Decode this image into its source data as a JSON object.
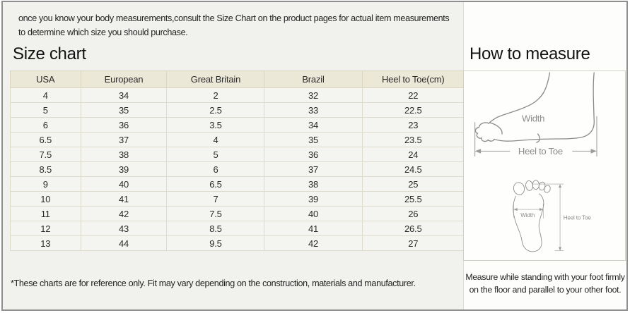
{
  "intro_text": "once you know your body measurements,consult the Size Chart on the product pages for actual item measurements to determine which size you should purchase.",
  "size_chart": {
    "title": "Size chart",
    "columns": [
      "USA",
      "European",
      "Great Britain",
      "Brazil",
      "Heel to Toe(cm)"
    ],
    "rows": [
      [
        "4",
        "34",
        "2",
        "32",
        "22"
      ],
      [
        "5",
        "35",
        "2.5",
        "33",
        "22.5"
      ],
      [
        "6",
        "36",
        "3.5",
        "34",
        "23"
      ],
      [
        "6.5",
        "37",
        "4",
        "35",
        "23.5"
      ],
      [
        "7.5",
        "38",
        "5",
        "36",
        "24"
      ],
      [
        "8.5",
        "39",
        "6",
        "37",
        "24.5"
      ],
      [
        "9",
        "40",
        "6.5",
        "38",
        "25"
      ],
      [
        "10",
        "41",
        "7",
        "39",
        "25.5"
      ],
      [
        "11",
        "42",
        "7.5",
        "40",
        "26"
      ],
      [
        "12",
        "43",
        "8.5",
        "41",
        "26.5"
      ],
      [
        "13",
        "44",
        "9.5",
        "42",
        "27"
      ]
    ],
    "footnote": "*These charts are for reference only. Fit may vary depending on the construction, materials and manufacturer."
  },
  "how_to_measure": {
    "title": "How to measure",
    "labels": {
      "width_side": "Width",
      "heel_to_toe_side": "Heel to Toe",
      "width_sole": "Width",
      "heel_to_toe_sole": "Heel to Toe"
    },
    "instruction": "Measure while standing with your foot firmly on the floor and parallel to your other foot."
  },
  "chart_data": {
    "type": "table",
    "title": "Size chart",
    "columns": [
      "USA",
      "European",
      "Great Britain",
      "Brazil",
      "Heel to Toe(cm)"
    ],
    "rows": [
      [
        4,
        34,
        2,
        32,
        22
      ],
      [
        5,
        35,
        2.5,
        33,
        22.5
      ],
      [
        6,
        36,
        3.5,
        34,
        23
      ],
      [
        6.5,
        37,
        4,
        35,
        23.5
      ],
      [
        7.5,
        38,
        5,
        36,
        24
      ],
      [
        8.5,
        39,
        6,
        37,
        24.5
      ],
      [
        9,
        40,
        6.5,
        38,
        25
      ],
      [
        10,
        41,
        7,
        39,
        25.5
      ],
      [
        11,
        42,
        7.5,
        40,
        26
      ],
      [
        12,
        43,
        8.5,
        41,
        26.5
      ],
      [
        13,
        44,
        9.5,
        42,
        27
      ]
    ]
  },
  "colors": {
    "page_bg": "#f1f1ee",
    "right_panel_bg": "#fdfdfb",
    "table_header_bg": "#ece8d8",
    "table_cell_bg": "#f4f4f1",
    "table_border": "#d9d5c1",
    "outer_border": "#8f8f8f",
    "diagram_stroke": "#8b8b8b",
    "diagram_label": "#8d8d8d",
    "text": "#1d1d1d"
  }
}
